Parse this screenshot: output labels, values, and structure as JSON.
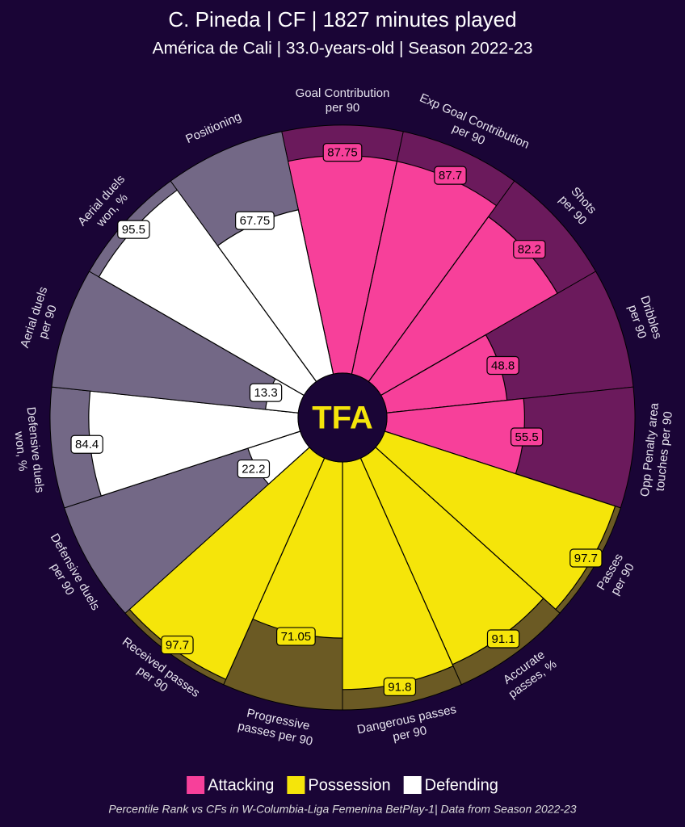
{
  "chart_data": {
    "type": "pizza",
    "title": "C. Pineda | CF | 1827 minutes played",
    "subtitle": "América de Cali | 33.0-years-old | Season 2022-23",
    "logo": "TFA",
    "footer": "Percentile Rank vs CFs in W-Columbia-Liga Femenina BetPlay-1| Data from Season 2022-23",
    "ylim": [
      0,
      100
    ],
    "series": [
      {
        "name": "Attacking",
        "color": "#f7409a",
        "background": "#6b1a5c",
        "categories": [
          "Goal Contribution\nper 90",
          "Exp Goal Contribution\nper 90",
          "Shots\nper 90",
          "Dribbles\nper 90",
          "Opp Penalty area\ntouches per 90"
        ],
        "values": [
          87.75,
          87.7,
          82.2,
          48.8,
          55.5
        ]
      },
      {
        "name": "Possession",
        "color": "#f5e50a",
        "background": "#6b5a24",
        "categories": [
          "Passes\nper 90",
          "Accurate\npasses, %",
          "Dangerous passes\nper 90",
          "Progressive\npasses per 90",
          "Received passes\nper 90"
        ],
        "values": [
          97.7,
          91.1,
          91.8,
          71.05,
          97.7
        ]
      },
      {
        "name": "Defending",
        "color": "#ffffff",
        "background": "#736886",
        "categories": [
          "Defensive duels\nper 90",
          "Defensive duels\nwon, %",
          "Aerial duels\nper 90",
          "Aerial duels\nwon, %",
          "Positioning"
        ],
        "values": [
          22.2,
          84.4,
          13.3,
          95.5,
          67.75
        ]
      }
    ]
  }
}
